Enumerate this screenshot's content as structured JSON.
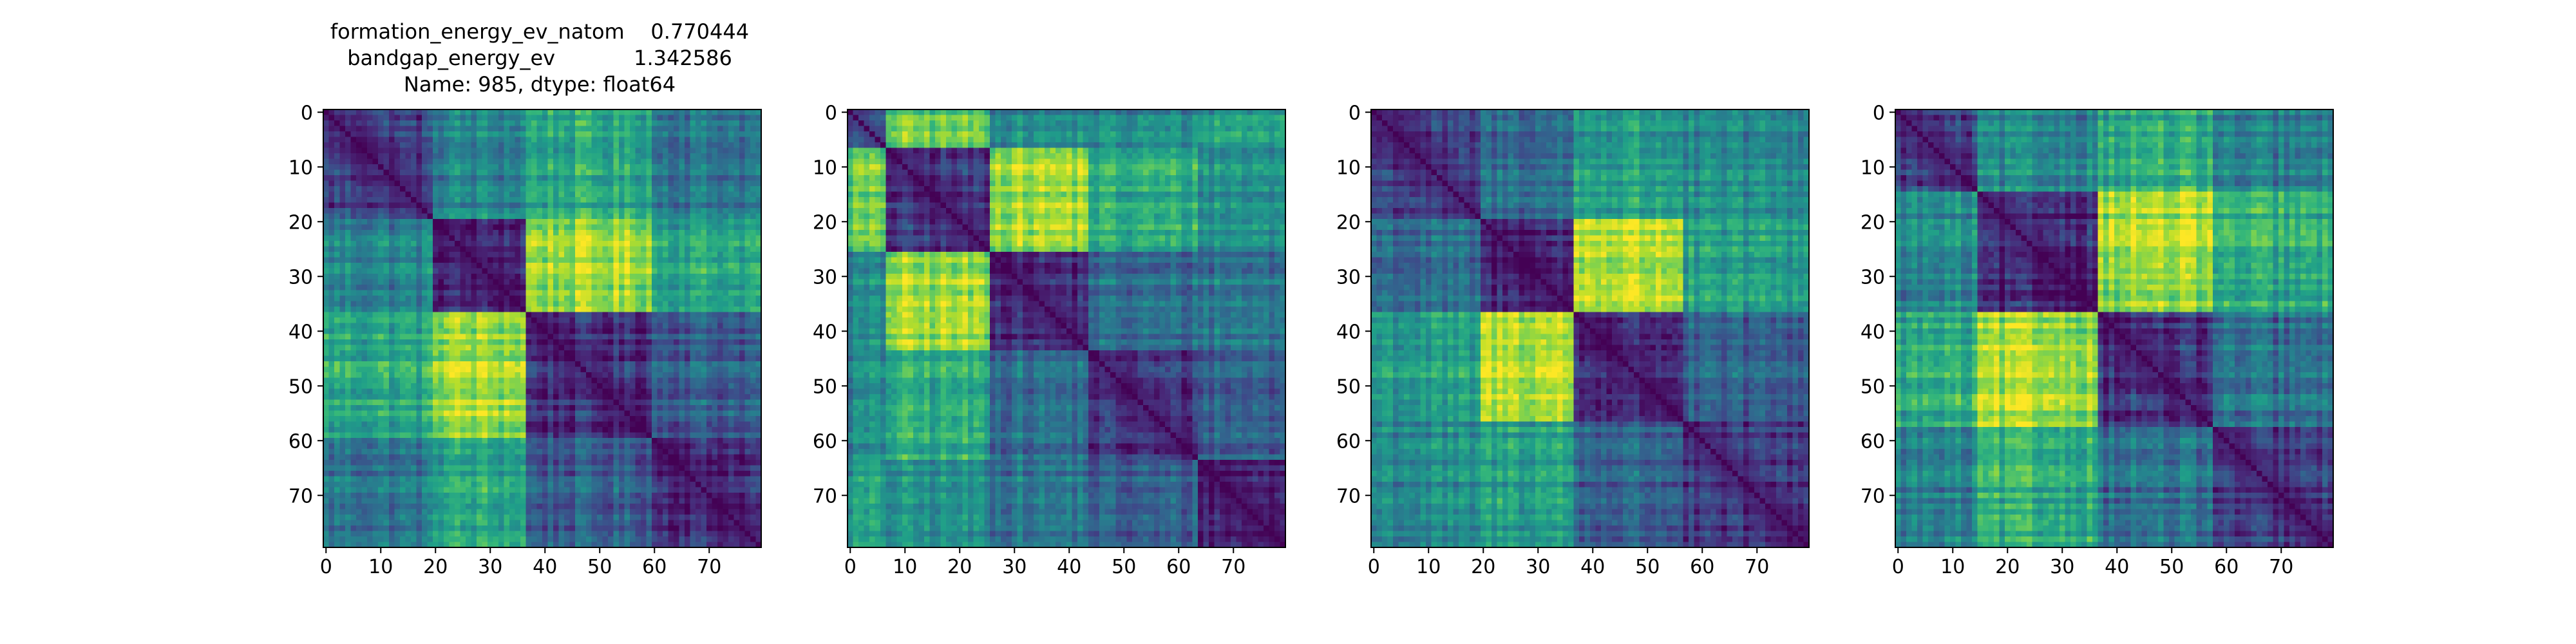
{
  "figure": {
    "title_lines": [
      "formation_energy_ev_natom    0.770444",
      "bandgap_energy_ev            1.342586",
      "Name: 985, dtype: float64"
    ]
  },
  "chart_data": [
    {
      "type": "heatmap",
      "title": "",
      "xlabel": "",
      "ylabel": "",
      "xlim": [
        -0.5,
        79.5
      ],
      "ylim": [
        79.5,
        -0.5
      ],
      "xticks": [
        0,
        10,
        20,
        30,
        40,
        50,
        60,
        70
      ],
      "yticks": [
        0,
        10,
        20,
        30,
        40,
        50,
        60,
        70
      ],
      "size": 80,
      "colormap": "viridis",
      "block_boundaries": [
        20,
        37,
        60
      ],
      "block_levels": [
        [
          0.2,
          0.45,
          0.6,
          0.4
        ],
        [
          0.45,
          0.12,
          0.85,
          0.6
        ],
        [
          0.6,
          0.85,
          0.15,
          0.3
        ],
        [
          0.4,
          0.6,
          0.3,
          0.15
        ]
      ]
    },
    {
      "type": "heatmap",
      "title": "",
      "xlabel": "",
      "ylabel": "",
      "xlim": [
        -0.5,
        79.5
      ],
      "ylim": [
        79.5,
        -0.5
      ],
      "xticks": [
        0,
        10,
        20,
        30,
        40,
        50,
        60,
        70
      ],
      "yticks": [
        0,
        10,
        20,
        30,
        40,
        50,
        60,
        70
      ],
      "size": 80,
      "colormap": "viridis",
      "block_boundaries": [
        7,
        26,
        44,
        64
      ],
      "block_levels": [
        [
          0.35,
          0.75,
          0.45,
          0.45,
          0.55
        ],
        [
          0.75,
          0.15,
          0.85,
          0.6,
          0.5
        ],
        [
          0.45,
          0.85,
          0.15,
          0.35,
          0.4
        ],
        [
          0.45,
          0.6,
          0.35,
          0.15,
          0.3
        ],
        [
          0.55,
          0.5,
          0.4,
          0.3,
          0.12
        ]
      ]
    },
    {
      "type": "heatmap",
      "title": "",
      "xlabel": "",
      "ylabel": "",
      "xlim": [
        -0.5,
        79.5
      ],
      "ylim": [
        79.5,
        -0.5
      ],
      "xticks": [
        0,
        10,
        20,
        30,
        40,
        50,
        60,
        70
      ],
      "yticks": [
        0,
        10,
        20,
        30,
        40,
        50,
        60,
        70
      ],
      "size": 80,
      "colormap": "viridis",
      "block_boundaries": [
        20,
        37,
        57
      ],
      "block_levels": [
        [
          0.18,
          0.35,
          0.55,
          0.45
        ],
        [
          0.35,
          0.12,
          0.9,
          0.55
        ],
        [
          0.55,
          0.9,
          0.15,
          0.3
        ],
        [
          0.45,
          0.55,
          0.3,
          0.15
        ]
      ]
    },
    {
      "type": "heatmap",
      "title": "",
      "xlabel": "",
      "ylabel": "",
      "xlim": [
        -0.5,
        79.5
      ],
      "ylim": [
        79.5,
        -0.5
      ],
      "xticks": [
        0,
        10,
        20,
        30,
        40,
        50,
        60,
        70
      ],
      "yticks": [
        0,
        10,
        20,
        30,
        40,
        50,
        60,
        70
      ],
      "size": 80,
      "colormap": "viridis",
      "block_boundaries": [
        15,
        37,
        58
      ],
      "block_levels": [
        [
          0.18,
          0.45,
          0.6,
          0.4
        ],
        [
          0.45,
          0.12,
          0.85,
          0.6
        ],
        [
          0.6,
          0.85,
          0.15,
          0.35
        ],
        [
          0.4,
          0.6,
          0.35,
          0.15
        ]
      ]
    }
  ]
}
